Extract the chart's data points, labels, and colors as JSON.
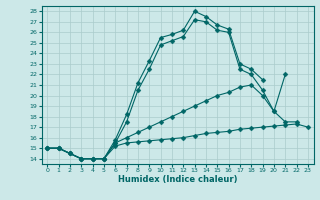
{
  "title": "",
  "xlabel": "Humidex (Indice chaleur)",
  "bg_color": "#cce8e8",
  "grid_color": "#aacccc",
  "line_color": "#006666",
  "xlim": [
    -0.5,
    23.5
  ],
  "ylim": [
    13.5,
    28.5
  ],
  "xticks": [
    0,
    1,
    2,
    3,
    4,
    5,
    6,
    7,
    8,
    9,
    10,
    11,
    12,
    13,
    14,
    15,
    16,
    17,
    18,
    19,
    20,
    21,
    22,
    23
  ],
  "yticks": [
    14,
    15,
    16,
    17,
    18,
    19,
    20,
    21,
    22,
    23,
    24,
    25,
    26,
    27,
    28
  ],
  "series": [
    {
      "x": [
        0,
        1,
        2,
        3,
        4,
        5,
        6,
        7,
        8,
        9,
        10,
        11,
        12,
        13,
        14,
        15,
        16,
        17,
        18,
        19
      ],
      "y": [
        15,
        15,
        14.5,
        14,
        14,
        14,
        15.8,
        18.2,
        21.2,
        23.3,
        25.5,
        25.8,
        26.2,
        28.0,
        27.5,
        26.7,
        26.3,
        23.0,
        22.5,
        21.5
      ]
    },
    {
      "x": [
        0,
        1,
        2,
        3,
        4,
        5,
        6,
        7,
        8,
        9,
        10,
        11,
        12,
        13,
        14,
        15,
        16,
        17,
        18,
        19,
        20,
        21
      ],
      "y": [
        15,
        15,
        14.5,
        14,
        14,
        14,
        15.5,
        17.5,
        20.5,
        22.5,
        24.8,
        25.2,
        25.6,
        27.2,
        27.0,
        26.2,
        26.0,
        22.5,
        22.0,
        20.5,
        18.5,
        22.0
      ]
    },
    {
      "x": [
        0,
        1,
        2,
        3,
        4,
        5,
        6,
        7,
        8,
        9,
        10,
        11,
        12,
        13,
        14,
        15,
        16,
        17,
        18,
        19,
        20,
        21,
        22
      ],
      "y": [
        15,
        15,
        14.5,
        14,
        14,
        14,
        15.5,
        16.0,
        16.5,
        17.0,
        17.5,
        18.0,
        18.5,
        19.0,
        19.5,
        20.0,
        20.3,
        20.8,
        21.0,
        20.0,
        18.5,
        17.5,
        17.5
      ]
    },
    {
      "x": [
        0,
        1,
        2,
        3,
        4,
        5,
        6,
        7,
        8,
        9,
        10,
        11,
        12,
        13,
        14,
        15,
        16,
        17,
        18,
        19,
        20,
        21,
        22,
        23
      ],
      "y": [
        15,
        15,
        14.5,
        14,
        14,
        14,
        15.2,
        15.5,
        15.6,
        15.7,
        15.8,
        15.9,
        16.0,
        16.2,
        16.4,
        16.5,
        16.6,
        16.8,
        16.9,
        17.0,
        17.1,
        17.2,
        17.3,
        17.0
      ]
    }
  ]
}
